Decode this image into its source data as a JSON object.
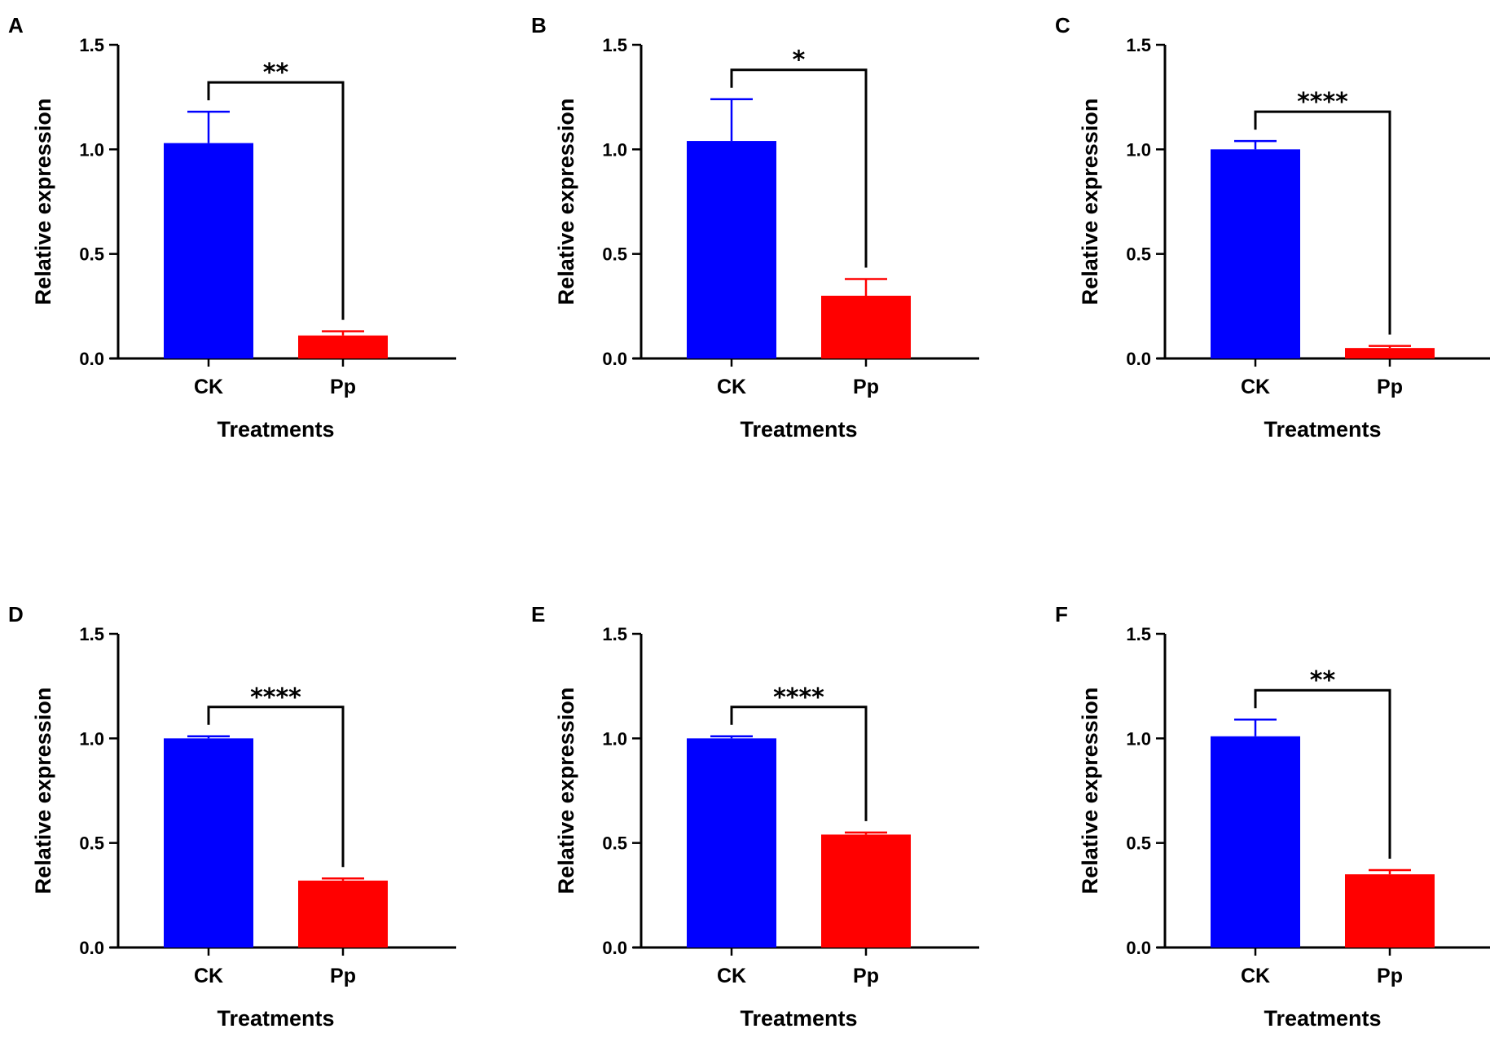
{
  "chart_data": [
    {
      "panel": "A",
      "type": "bar",
      "categories": [
        "CK",
        "Pp"
      ],
      "values": [
        1.03,
        0.11
      ],
      "errors": [
        0.15,
        0.02
      ],
      "colors": [
        "#0000ff",
        "#ff0000"
      ],
      "significance": "**",
      "xlabel": "Treatments",
      "ylabel": "Relative expression",
      "ylim": [
        0,
        1.5
      ],
      "yticks": [
        "0.0",
        "0.5",
        "1.0",
        "1.5"
      ]
    },
    {
      "panel": "B",
      "type": "bar",
      "categories": [
        "CK",
        "Pp"
      ],
      "values": [
        1.04,
        0.3
      ],
      "errors": [
        0.2,
        0.08
      ],
      "colors": [
        "#0000ff",
        "#ff0000"
      ],
      "significance": "*",
      "xlabel": "Treatments",
      "ylabel": "Relative expression",
      "ylim": [
        0,
        1.5
      ],
      "yticks": [
        "0.0",
        "0.5",
        "1.0",
        "1.5"
      ]
    },
    {
      "panel": "C",
      "type": "bar",
      "categories": [
        "CK",
        "Pp"
      ],
      "values": [
        1.0,
        0.05
      ],
      "errors": [
        0.04,
        0.01
      ],
      "colors": [
        "#0000ff",
        "#ff0000"
      ],
      "significance": "****",
      "xlabel": "Treatments",
      "ylabel": "Relative expression",
      "ylim": [
        0,
        1.5
      ],
      "yticks": [
        "0.0",
        "0.5",
        "1.0",
        "1.5"
      ]
    },
    {
      "panel": "D",
      "type": "bar",
      "categories": [
        "CK",
        "Pp"
      ],
      "values": [
        1.0,
        0.32
      ],
      "errors": [
        0.01,
        0.01
      ],
      "colors": [
        "#0000ff",
        "#ff0000"
      ],
      "significance": "****",
      "xlabel": "Treatments",
      "ylabel": "Relative expression",
      "ylim": [
        0,
        1.5
      ],
      "yticks": [
        "0.0",
        "0.5",
        "1.0",
        "1.5"
      ]
    },
    {
      "panel": "E",
      "type": "bar",
      "categories": [
        "CK",
        "Pp"
      ],
      "values": [
        1.0,
        0.54
      ],
      "errors": [
        0.01,
        0.01
      ],
      "colors": [
        "#0000ff",
        "#ff0000"
      ],
      "significance": "****",
      "xlabel": "Treatments",
      "ylabel": "Relative expression",
      "ylim": [
        0,
        1.5
      ],
      "yticks": [
        "0.0",
        "0.5",
        "1.0",
        "1.5"
      ]
    },
    {
      "panel": "F",
      "type": "bar",
      "categories": [
        "CK",
        "Pp"
      ],
      "values": [
        1.01,
        0.35
      ],
      "errors": [
        0.08,
        0.02
      ],
      "colors": [
        "#0000ff",
        "#ff0000"
      ],
      "significance": "**",
      "xlabel": "Treatments",
      "ylabel": "Relative expression",
      "ylim": [
        0,
        1.5
      ],
      "yticks": [
        "0.0",
        "0.5",
        "1.0",
        "1.5"
      ]
    }
  ]
}
